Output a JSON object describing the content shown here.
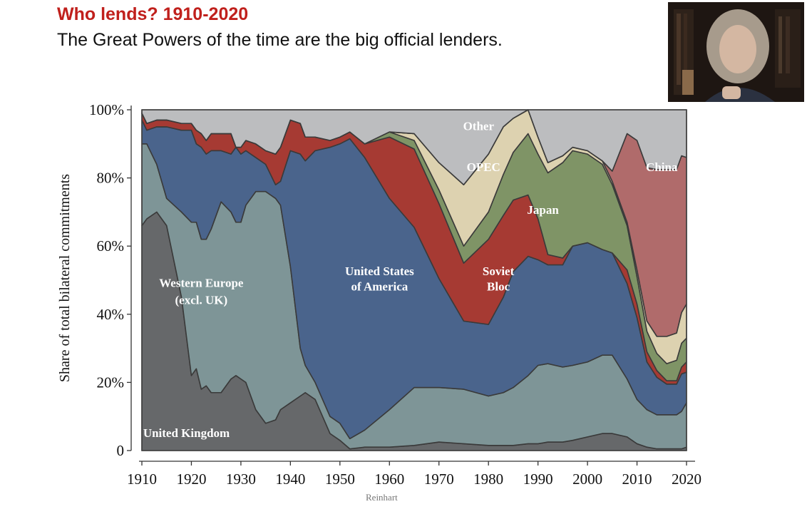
{
  "slide": {
    "title": "Who lends? 1910-2020",
    "subtitle": "The Great Powers of the time are the big official lenders.",
    "attribution": "Reinhart"
  },
  "webcam": {
    "description_icon": "presenter-video-icon"
  },
  "colors": {
    "title_red": "#c0201c",
    "uk": "#66686a",
    "western_europe": "#7e9597",
    "usa": "#4a648c",
    "soviet": "#a63a33",
    "japan": "#7f9466",
    "opec": "#ddd2b0",
    "china": "#b06b6b",
    "other": "#bcbdbf"
  },
  "chart_data": {
    "type": "area",
    "stacked": true,
    "title": "",
    "xlabel": "",
    "ylabel": "Share of total bilateral commitments",
    "xlim": [
      1910,
      2020
    ],
    "ylim": [
      0,
      100
    ],
    "x_ticks": [
      "1910",
      "1920",
      "1930",
      "1940",
      "1950",
      "1960",
      "1970",
      "1980",
      "1990",
      "2000",
      "2010",
      "2020"
    ],
    "y_ticks": [
      "0",
      "20%",
      "40%",
      "60%",
      "80%",
      "100%"
    ],
    "grid": false,
    "legend": "none (labels inside areas)",
    "x": [
      1910,
      1911,
      1913,
      1915,
      1918,
      1920,
      1921,
      1922,
      1923,
      1924,
      1926,
      1928,
      1929,
      1930,
      1931,
      1933,
      1935,
      1937,
      1938,
      1940,
      1942,
      1943,
      1945,
      1948,
      1950,
      1952,
      1955,
      1960,
      1965,
      1970,
      1975,
      1980,
      1983,
      1985,
      1988,
      1990,
      1992,
      1995,
      1997,
      2000,
      2003,
      2005,
      2008,
      2010,
      2012,
      2014,
      2016,
      2018,
      2019,
      2020
    ],
    "series": [
      {
        "name": "United Kingdom",
        "values": [
          66,
          68,
          70,
          66,
          45,
          22,
          24,
          18,
          19,
          17,
          17,
          21,
          22,
          21,
          20,
          12,
          8,
          9,
          12,
          14,
          16,
          17,
          15,
          5,
          3,
          0.5,
          1,
          1,
          1.5,
          2.5,
          2,
          1.5,
          1.5,
          1.5,
          2,
          2,
          2.5,
          2.5,
          3,
          4,
          5,
          5,
          4,
          2,
          1,
          0.5,
          0.5,
          0.5,
          0.5,
          1
        ]
      },
      {
        "name": "Western Europe (excl. UK)",
        "values": [
          24,
          22,
          14,
          8,
          25,
          45,
          43,
          44,
          43,
          48,
          56,
          49,
          45,
          46,
          52,
          64,
          68,
          65,
          60,
          40,
          14,
          8,
          5,
          5,
          5,
          3,
          5,
          11,
          17,
          16,
          16,
          14.5,
          15.5,
          17,
          20,
          23,
          23,
          22,
          22,
          22,
          23,
          23,
          17,
          13,
          11,
          10,
          10,
          10,
          11,
          13
        ]
      },
      {
        "name": "United States of America",
        "values": [
          7,
          4,
          11,
          21,
          24,
          27,
          23,
          27,
          25,
          23,
          15,
          17,
          22,
          20,
          16,
          10,
          8,
          4,
          7,
          34,
          57,
          60,
          68,
          79,
          82,
          88,
          80,
          62,
          47,
          32,
          20,
          21,
          28,
          34,
          35,
          31,
          29,
          30,
          35,
          35,
          31,
          30,
          28,
          24,
          14,
          11,
          9,
          9,
          11,
          9
        ]
      },
      {
        "name": "Soviet Bloc",
        "values": [
          2,
          2,
          2,
          2,
          2,
          2,
          4,
          4,
          4,
          5,
          5,
          6,
          0,
          2,
          3,
          4,
          4,
          9,
          10,
          9,
          9,
          7,
          4,
          2,
          2,
          2,
          4,
          18,
          23,
          22,
          17,
          25,
          24,
          21,
          18,
          12,
          3,
          2,
          0,
          0,
          0,
          0,
          4,
          4,
          3,
          2,
          1,
          1,
          2,
          3
        ]
      },
      {
        "name": "Japan",
        "values": [
          0,
          0,
          0,
          0,
          0,
          0,
          0,
          0,
          0,
          0,
          0,
          0,
          0,
          0,
          0,
          0,
          0,
          0,
          0,
          0,
          0,
          0,
          0,
          0,
          0,
          0,
          0,
          1.5,
          2.5,
          4,
          5,
          8,
          12,
          14,
          18,
          19,
          24,
          28,
          28,
          26,
          25,
          20,
          13,
          8,
          6,
          5,
          5,
          6,
          7,
          7
        ]
      },
      {
        "name": "OPEC",
        "values": [
          0,
          0,
          0,
          0,
          0,
          0,
          0,
          0,
          0,
          0,
          0,
          0,
          0,
          0,
          0,
          0,
          0,
          0,
          0,
          0,
          0,
          0,
          0,
          0,
          0,
          0,
          0,
          0,
          2,
          8,
          18,
          17,
          14,
          10,
          7,
          5,
          3,
          2,
          1,
          1,
          1,
          1,
          1,
          2,
          3,
          5,
          8,
          8,
          9,
          10
        ]
      },
      {
        "name": "China",
        "values": [
          0,
          0,
          0,
          0,
          0,
          0,
          0,
          0,
          0,
          0,
          0,
          0,
          0,
          0,
          0,
          0,
          0,
          0,
          0,
          0,
          0,
          0,
          0,
          0,
          0,
          0,
          0,
          0,
          0,
          0,
          0,
          0,
          0,
          0,
          0,
          0,
          0,
          0,
          0,
          0,
          0,
          3,
          26,
          38,
          45,
          49,
          49,
          48,
          46,
          43
        ]
      },
      {
        "name": "Other",
        "values": [
          1,
          4,
          3,
          3,
          4,
          4,
          6,
          7,
          9,
          7,
          7,
          7,
          11,
          11,
          9,
          10,
          12,
          13,
          11,
          3,
          4,
          8,
          8,
          9,
          8,
          6.5,
          10,
          6.5,
          7,
          15.5,
          22,
          13,
          5,
          2.5,
          0,
          8,
          15.5,
          13.5,
          11,
          12,
          15,
          18,
          7,
          9,
          17,
          17.5,
          17.5,
          17.5,
          13.5,
          14
        ]
      }
    ],
    "labels": [
      {
        "text": "United Kingdom",
        "series": "United Kingdom"
      },
      {
        "text": "Western Europe",
        "series": "Western Europe (excl. UK)"
      },
      {
        "text": "(excl. UK)",
        "series": "Western Europe (excl. UK)"
      },
      {
        "text": "United States",
        "series": "United States of America"
      },
      {
        "text": "of America",
        "series": "United States of America"
      },
      {
        "text": "Soviet",
        "series": "Soviet Bloc"
      },
      {
        "text": "Bloc",
        "series": "Soviet Bloc"
      },
      {
        "text": "Japan",
        "series": "Japan"
      },
      {
        "text": "OPEC",
        "series": "OPEC"
      },
      {
        "text": "China",
        "series": "China"
      },
      {
        "text": "Other",
        "series": "Other"
      }
    ]
  }
}
